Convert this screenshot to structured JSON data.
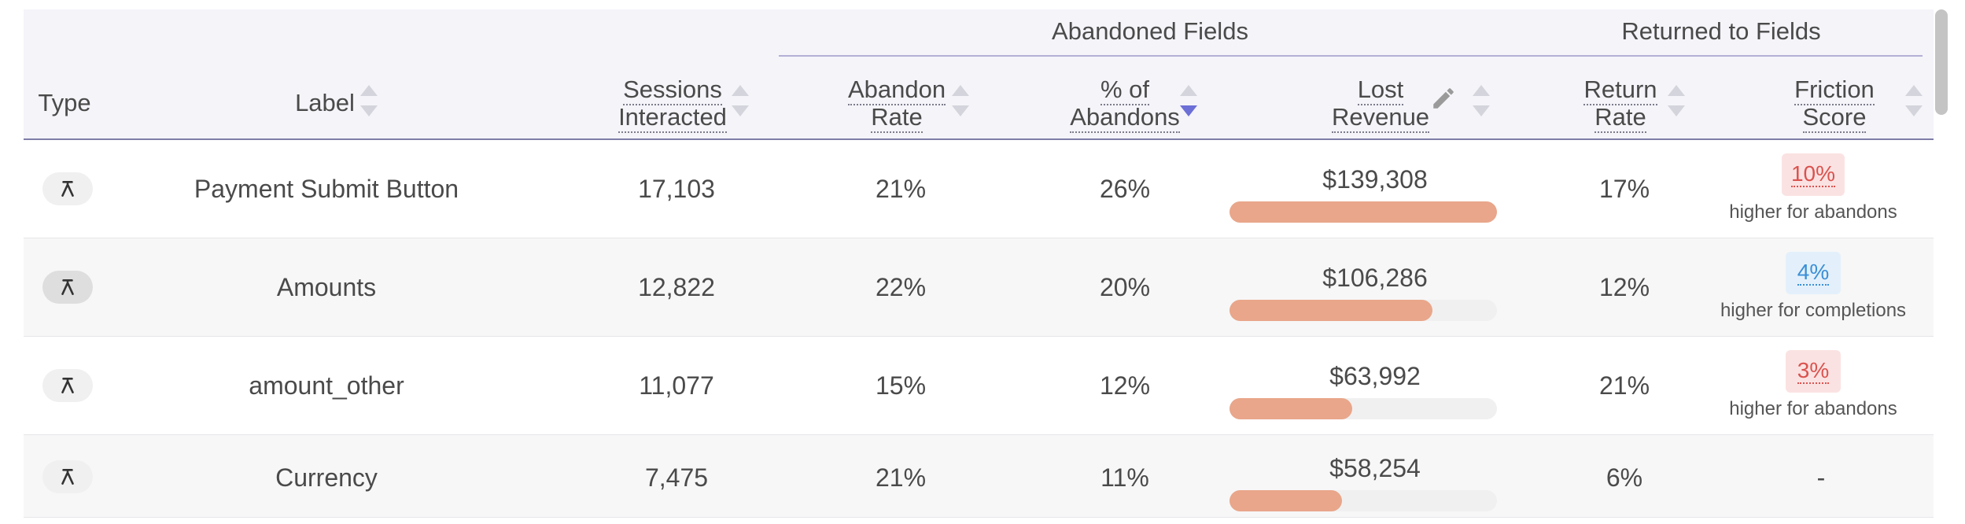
{
  "groups": {
    "abandoned": "Abandoned Fields",
    "returned": "Returned to Fields"
  },
  "columns": {
    "type": "Type",
    "label": "Label",
    "sessions_line1": "Sessions",
    "sessions_line2": "Interacted",
    "abandon_rate_line1": "Abandon",
    "abandon_rate_line2": "Rate",
    "pct_abandons_line1": "% of",
    "pct_abandons_line2": "Abandons",
    "lost_revenue_line1": "Lost",
    "lost_revenue_line2": "Revenue",
    "return_rate_line1": "Return",
    "return_rate_line2": "Rate",
    "friction_line1": "Friction",
    "friction_line2": "Score"
  },
  "sort": {
    "active_column": "pct_abandons",
    "direction": "descending"
  },
  "colors": {
    "header_bg": "#f4f4f9",
    "bar_fill": "#e9a68a",
    "abandons_badge_bg": "#fbe2e2",
    "abandons_badge_text": "#d9534f",
    "completions_badge_bg": "#e3f0fb",
    "completions_badge_text": "#3a8fd6",
    "sort_active": "#6c6fd6"
  },
  "rows": [
    {
      "type_icon": "field-type-icon",
      "label": "Payment Submit Button",
      "sessions": "17,103",
      "abandon_rate": "21%",
      "pct_abandons": "26%",
      "lost_revenue": "$139,308",
      "lost_revenue_fraction": 1.0,
      "return_rate": "17%",
      "friction_score": "10%",
      "friction_note": "higher for abandons",
      "friction_kind": "abandons"
    },
    {
      "type_icon": "field-type-icon",
      "label": "Amounts",
      "sessions": "12,822",
      "abandon_rate": "22%",
      "pct_abandons": "20%",
      "lost_revenue": "$106,286",
      "lost_revenue_fraction": 0.76,
      "return_rate": "12%",
      "friction_score": "4%",
      "friction_note": "higher for completions",
      "friction_kind": "completions"
    },
    {
      "type_icon": "field-type-icon",
      "label": "amount_other",
      "sessions": "11,077",
      "abandon_rate": "15%",
      "pct_abandons": "12%",
      "lost_revenue": "$63,992",
      "lost_revenue_fraction": 0.46,
      "return_rate": "21%",
      "friction_score": "3%",
      "friction_note": "higher for abandons",
      "friction_kind": "abandons"
    },
    {
      "type_icon": "field-type-icon",
      "label": "Currency",
      "sessions": "7,475",
      "abandon_rate": "21%",
      "pct_abandons": "11%",
      "lost_revenue": "$58,254",
      "lost_revenue_fraction": 0.42,
      "return_rate": "6%",
      "friction_score": "-",
      "friction_note": "",
      "friction_kind": "none"
    }
  ]
}
